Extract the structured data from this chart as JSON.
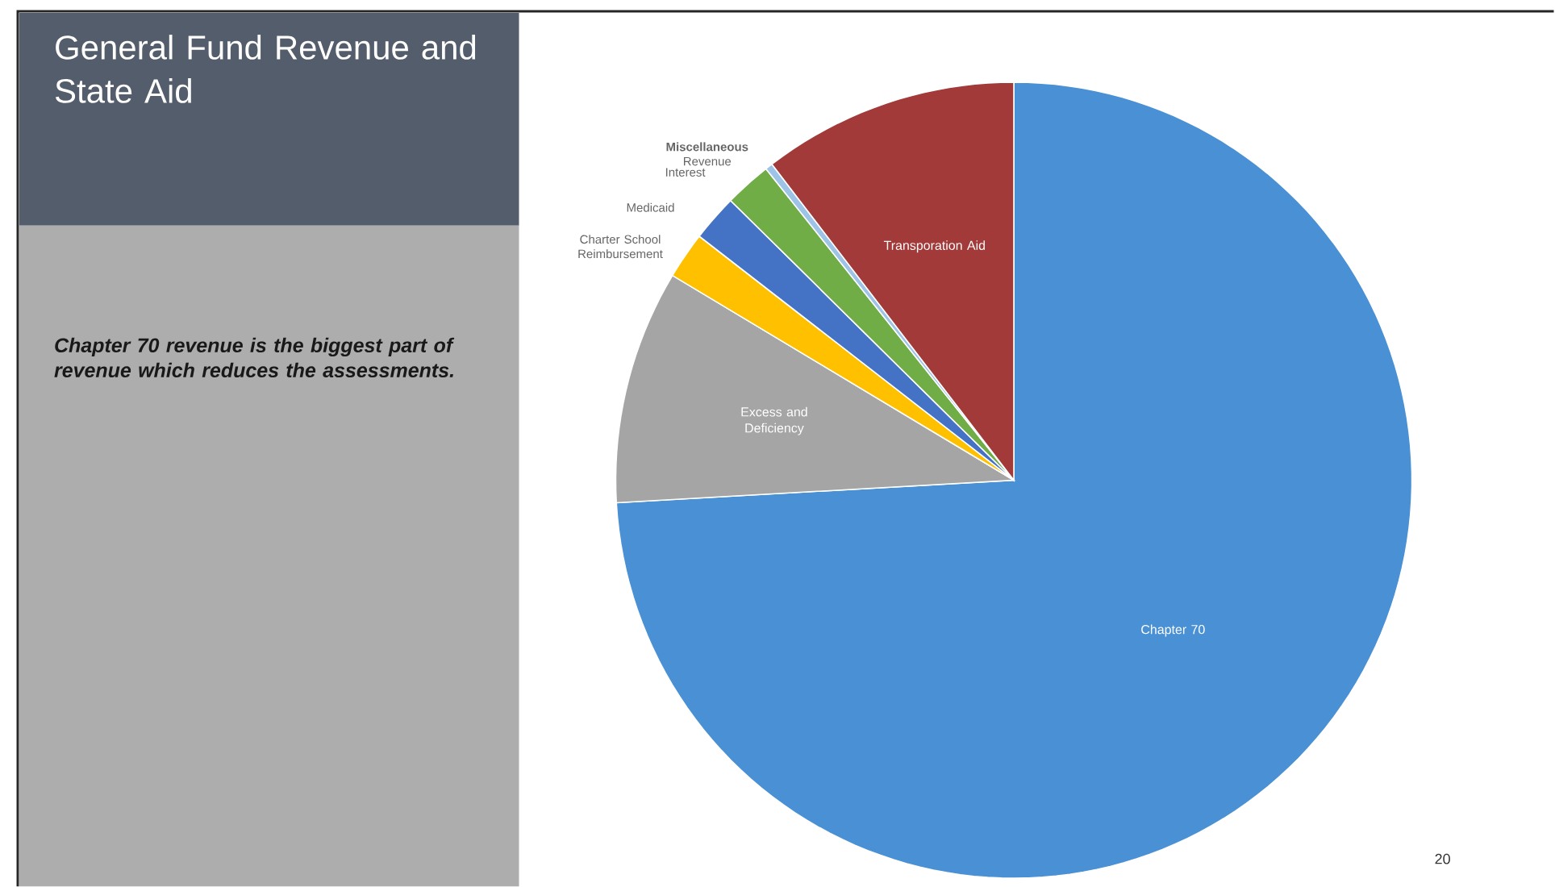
{
  "chart_data": {
    "type": "pie",
    "title": "General Fund Revenue and State Aid",
    "categories": [
      "Chapter 70",
      "Excess and Deficiency",
      "Charter School Reimbursement",
      "Medicaid",
      "Interest",
      "**Miscellaneous** Revenue",
      "Transporation Aid"
    ],
    "values": [
      74.1,
      9.5,
      1.9,
      1.9,
      1.9,
      0.3,
      10.4
    ],
    "colors": [
      "#4a90d4",
      "#a5a5a5",
      "#ffc000",
      "#4472c4",
      "#70ad47",
      "#9dc3e6",
      "#a33a3a"
    ],
    "annotations": [
      "Chapter 70 revenue is the biggest part of revenue which reduces the assessments.",
      "20"
    ]
  }
}
